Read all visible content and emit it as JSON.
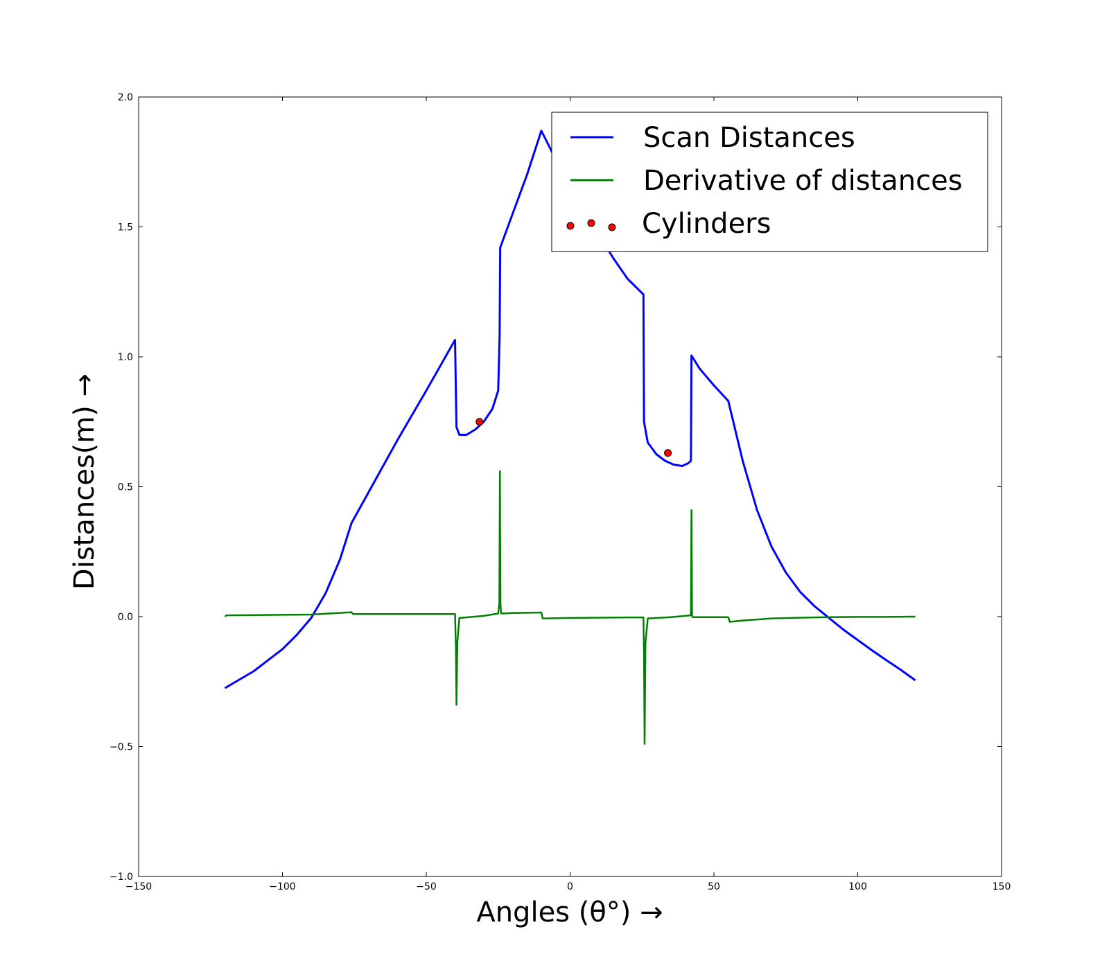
{
  "chart_data": {
    "type": "line",
    "title": "",
    "xlabel": "Angles (θ°) →",
    "ylabel": "Distances(m) →",
    "xlim": [
      -150,
      150
    ],
    "ylim": [
      -1.0,
      2.0
    ],
    "xticks": [
      -150,
      -100,
      -50,
      0,
      50,
      100,
      150
    ],
    "xtick_labels": [
      "−150",
      "−100",
      "−50",
      "0",
      "50",
      "100",
      "150"
    ],
    "yticks": [
      -1.0,
      -0.5,
      0.0,
      0.5,
      1.0,
      1.5,
      2.0
    ],
    "ytick_labels": [
      "−1.0",
      "−0.5",
      "0.0",
      "0.5",
      "1.0",
      "1.5",
      "2.0"
    ],
    "grid": false,
    "legend_position": "top-right",
    "series": [
      {
        "name": "Scan Distances",
        "kind": "line",
        "color": "#0000ff",
        "x": [
          -120,
          -110,
          -100,
          -95,
          -90,
          -85,
          -80,
          -76,
          -70,
          -60,
          -50,
          -40,
          -39.5,
          -38.5,
          -36,
          -33,
          -30,
          -27,
          -25,
          -24.5,
          -24.3,
          -20,
          -15,
          -10,
          -5,
          0,
          5,
          10,
          15,
          20,
          25.5,
          25.7,
          27,
          30,
          33,
          36,
          39,
          41,
          42,
          42.2,
          45,
          50,
          55,
          60,
          65,
          70,
          75,
          80,
          85,
          90,
          95,
          100,
          105,
          110,
          115,
          120
        ],
        "y": [
          -0.275,
          -0.21,
          -0.125,
          -0.07,
          -0.005,
          0.09,
          0.22,
          0.36,
          0.48,
          0.68,
          0.87,
          1.065,
          0.73,
          0.7,
          0.7,
          0.72,
          0.75,
          0.8,
          0.87,
          1.08,
          1.42,
          1.55,
          1.7,
          1.87,
          1.76,
          1.66,
          1.56,
          1.47,
          1.38,
          1.3,
          1.24,
          0.75,
          0.67,
          0.625,
          0.6,
          0.585,
          0.58,
          0.59,
          0.6,
          1.005,
          0.955,
          0.89,
          0.83,
          0.6,
          0.41,
          0.27,
          0.17,
          0.095,
          0.04,
          -0.005,
          -0.05,
          -0.09,
          -0.13,
          -0.168,
          -0.205,
          -0.245
        ]
      },
      {
        "name": "Derivative of distances",
        "kind": "line",
        "color": "#008000",
        "x": [
          -120,
          -119.5,
          -100,
          -90,
          -76,
          -75.5,
          -60,
          -40,
          -39.7,
          -39.5,
          -39.2,
          -38.5,
          -30,
          -25,
          -24.6,
          -24.4,
          -24.2,
          -24,
          -20,
          -10,
          -9.5,
          -5,
          0,
          10,
          20,
          25.5,
          25.7,
          25.9,
          26.2,
          27,
          35,
          42,
          42.2,
          42.4,
          42.6,
          43,
          50,
          55,
          55.5,
          60,
          70,
          80,
          90,
          100,
          110,
          120
        ],
        "y": [
          0.0,
          0.005,
          0.007,
          0.008,
          0.017,
          0.01,
          0.01,
          0.01,
          -0.12,
          -0.34,
          -0.1,
          -0.005,
          0.003,
          0.012,
          0.05,
          0.56,
          0.05,
          0.012,
          0.014,
          0.016,
          -0.007,
          -0.006,
          -0.005,
          -0.004,
          -0.003,
          -0.003,
          -0.15,
          -0.49,
          -0.1,
          -0.007,
          -0.002,
          0.005,
          0.41,
          0.005,
          -0.002,
          -0.002,
          -0.002,
          -0.002,
          -0.02,
          -0.015,
          -0.007,
          -0.004,
          -0.002,
          -0.001,
          -0.001,
          0.0
        ]
      },
      {
        "name": "Cylinders",
        "kind": "scatter",
        "color": "#ff0000",
        "x": [
          -31.5,
          34
        ],
        "y": [
          0.75,
          0.63
        ]
      }
    ],
    "legend_labels": [
      "Scan Distances",
      "Derivative of distances",
      "Cylinders"
    ]
  }
}
